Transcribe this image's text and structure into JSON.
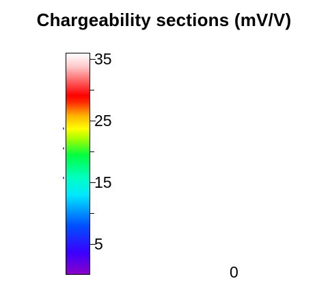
{
  "title": "Chargeability sections (mV/V)",
  "chart_data": {
    "type": "heatmap",
    "title": "Chargeability sections (mV/V)",
    "colorbar": {
      "min": 0,
      "max": 35,
      "ticks": [
        5,
        15,
        25,
        35
      ],
      "tick_labels": [
        "5",
        "15",
        "25",
        "35"
      ],
      "minor_ticks": [
        10,
        20,
        30
      ],
      "colormap": "rainbow (purple to white)"
    },
    "annotations": [
      "0"
    ]
  },
  "colors": {
    "low": "#8a00c8",
    "mid": "#00ff40",
    "high": "#ff0000",
    "max": "#ffffff"
  }
}
